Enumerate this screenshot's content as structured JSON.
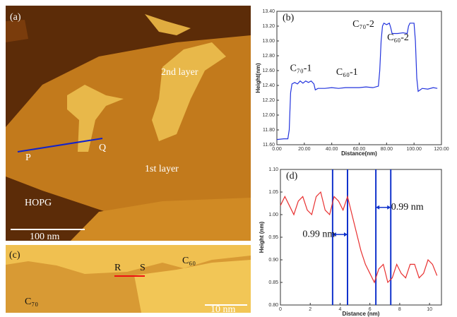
{
  "panels": {
    "a": {
      "label": "(a)",
      "top_label": "2nd layer",
      "mid_label": "1st layer",
      "substrate_label": "HOPG",
      "p": "P",
      "q": "Q",
      "scale_bar": "100 nm"
    },
    "c": {
      "label": "(c)",
      "r": "R",
      "s": "S",
      "c60": "C₆₀",
      "c70": "C₇₀",
      "scale_bar": "10 nm"
    }
  },
  "chart_data": [
    {
      "type": "line",
      "panel_label": "(b)",
      "xlabel": "Distance(nm)",
      "ylabel": "Height(nm)",
      "x": [
        0,
        5,
        8,
        9,
        10,
        11,
        13,
        15,
        17,
        19,
        21,
        23,
        25,
        27,
        28,
        30,
        35,
        40,
        45,
        50,
        55,
        60,
        65,
        70,
        74,
        75,
        76,
        77,
        78,
        80,
        82,
        83,
        84,
        88,
        92,
        95,
        96,
        97,
        100,
        101,
        102,
        103,
        106,
        110,
        114,
        117
      ],
      "series": [
        {
          "color": "#2233dd",
          "values": [
            11.67,
            11.68,
            11.68,
            11.8,
            12.3,
            12.42,
            12.44,
            12.42,
            12.46,
            12.43,
            12.46,
            12.44,
            12.46,
            12.42,
            12.34,
            12.36,
            12.36,
            12.37,
            12.36,
            12.37,
            12.37,
            12.37,
            12.38,
            12.37,
            12.39,
            12.6,
            13.0,
            13.2,
            13.24,
            13.22,
            13.24,
            13.18,
            13.1,
            13.1,
            13.11,
            13.1,
            13.2,
            13.24,
            13.24,
            13.0,
            12.5,
            12.32,
            12.36,
            12.35,
            12.37,
            12.36
          ]
        }
      ],
      "xlim": [
        0,
        120
      ],
      "xticks": [
        {
          "value": 0,
          "label": "0.00"
        },
        {
          "value": 20,
          "label": "20.00"
        },
        {
          "value": 40,
          "label": "40.00"
        },
        {
          "value": 60,
          "label": "60.00"
        },
        {
          "value": 80,
          "label": "80.00"
        },
        {
          "value": 100,
          "label": "100.00"
        },
        {
          "value": 120,
          "label": "120.00"
        }
      ],
      "ylim": [
        11.6,
        13.4
      ],
      "yticks": [
        {
          "value": 11.6,
          "label": "11.60"
        },
        {
          "value": 11.8,
          "label": "11.80"
        },
        {
          "value": 12,
          "label": "12.00"
        },
        {
          "value": 12.2,
          "label": "12.20"
        },
        {
          "value": 12.4,
          "label": "12.40"
        },
        {
          "value": 12.6,
          "label": "12.60"
        },
        {
          "value": 12.8,
          "label": "12.80"
        },
        {
          "value": 13,
          "label": "13.00"
        },
        {
          "value": 13.2,
          "label": "13.20"
        },
        {
          "value": 13.4,
          "label": "13.40"
        }
      ],
      "annotations": [
        "C₇₀-1",
        "C₆₀-1",
        "C₇₀-2",
        "C₆₀-2"
      ]
    },
    {
      "type": "line",
      "panel_label": "(d)",
      "xlabel": "Distance (nm)",
      "ylabel": "Height (nm)",
      "x": [
        0,
        0.3,
        0.6,
        0.9,
        1.2,
        1.5,
        1.8,
        2.1,
        2.4,
        2.7,
        3.0,
        3.3,
        3.6,
        3.9,
        4.2,
        4.5,
        4.8,
        5.1,
        5.4,
        5.7,
        6.0,
        6.3,
        6.6,
        6.9,
        7.2,
        7.5,
        7.8,
        8.1,
        8.4,
        8.7,
        9.0,
        9.3,
        9.6,
        9.9,
        10.2,
        10.5
      ],
      "series": [
        {
          "color": "#e83030",
          "values": [
            1.02,
            1.04,
            1.02,
            1.0,
            1.03,
            1.04,
            1.01,
            1.0,
            1.04,
            1.05,
            1.01,
            1.0,
            1.04,
            1.03,
            1.01,
            1.04,
            1.0,
            0.96,
            0.92,
            0.89,
            0.87,
            0.85,
            0.88,
            0.89,
            0.85,
            0.86,
            0.89,
            0.87,
            0.86,
            0.89,
            0.89,
            0.86,
            0.87,
            0.9,
            0.89,
            0.865
          ]
        }
      ],
      "xlim": [
        0,
        10.8
      ],
      "xticks": [
        0,
        2,
        4,
        6,
        8,
        10
      ],
      "ylim": [
        0.8,
        1.1
      ],
      "yticks": [
        {
          "value": 0.8,
          "label": "0.80"
        },
        {
          "value": 0.85,
          "label": "0.85"
        },
        {
          "value": 0.9,
          "label": "0.90"
        },
        {
          "value": 0.95,
          "label": "0.95"
        },
        {
          "value": 1,
          "label": "1.00"
        },
        {
          "value": 1.05,
          "label": "1.05"
        },
        {
          "value": 1.1,
          "label": "1.10"
        }
      ],
      "vlines": [
        3.5,
        4.5,
        6.4,
        7.4
      ],
      "vline_color": "#1133cc",
      "annotations": [
        "0.99 nm",
        "0.99 nm"
      ]
    }
  ]
}
